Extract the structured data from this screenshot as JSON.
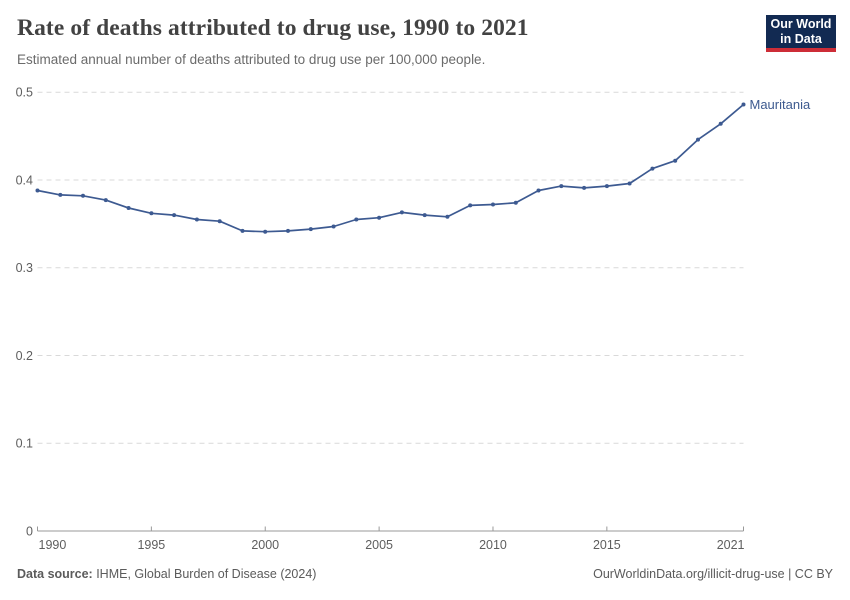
{
  "header": {
    "title": "Rate of deaths attributed to drug use, 1990 to 2021",
    "subtitle": "Estimated annual number of deaths attributed to drug use per 100,000 people.",
    "logo": {
      "line1": "Our World",
      "line2": "in Data",
      "bg_color": "#122A52",
      "accent_color": "#CD2D37"
    }
  },
  "chart_data": {
    "type": "line",
    "title": "Rate of deaths attributed to drug use, 1990 to 2021",
    "subtitle": "Estimated annual number of deaths attributed to drug use per 100,000 people.",
    "xlabel": "",
    "ylabel": "",
    "xlim": [
      1990,
      2021
    ],
    "ylim": [
      0,
      0.5
    ],
    "x_ticks": [
      1990,
      1995,
      2000,
      2005,
      2010,
      2015,
      2021
    ],
    "y_ticks": [
      0,
      0.1,
      0.2,
      0.3,
      0.4,
      0.5
    ],
    "y_tick_labels": [
      "0",
      "0.1",
      "0.2",
      "0.3",
      "0.4",
      "0.5"
    ],
    "grid": "horizontal-dashed",
    "legend_position": "end-of-line-label",
    "years": [
      1990,
      1991,
      1992,
      1993,
      1994,
      1995,
      1996,
      1997,
      1998,
      1999,
      2000,
      2001,
      2002,
      2003,
      2004,
      2005,
      2006,
      2007,
      2008,
      2009,
      2010,
      2011,
      2012,
      2013,
      2014,
      2015,
      2016,
      2017,
      2018,
      2019,
      2020,
      2021
    ],
    "series": [
      {
        "name": "Mauritania",
        "color": "#3d5a91",
        "label_color": "#3d5a8f",
        "values": [
          0.388,
          0.383,
          0.382,
          0.377,
          0.368,
          0.362,
          0.36,
          0.355,
          0.353,
          0.342,
          0.341,
          0.342,
          0.344,
          0.347,
          0.355,
          0.357,
          0.363,
          0.36,
          0.358,
          0.371,
          0.372,
          0.374,
          0.388,
          0.393,
          0.391,
          0.393,
          0.396,
          0.413,
          0.422,
          0.446,
          0.464,
          0.486
        ]
      }
    ],
    "style": {
      "grid_color": "#d9d9d9",
      "axis_color": "#999999",
      "tick_label_color": "#5e5e5e"
    }
  },
  "footer": {
    "source_label": "Data source:",
    "source_text": " IHME, Global Burden of Disease (2024)",
    "credit": "OurWorldinData.org/illicit-drug-use | CC BY"
  }
}
